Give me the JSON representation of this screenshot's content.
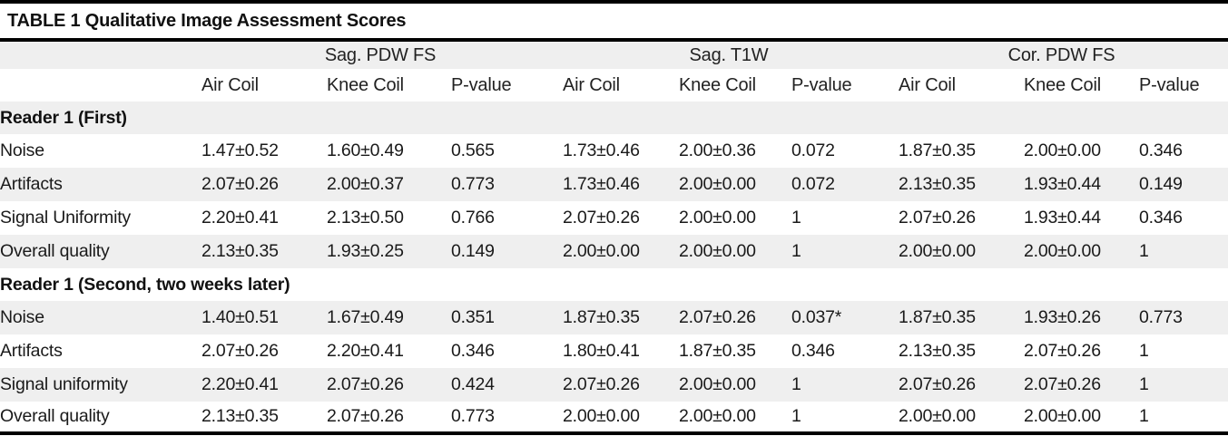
{
  "table": {
    "title": "TABLE 1 Qualitative Image Assessment Scores",
    "column_groups": [
      "Sag. PDW FS",
      "Sag. T1W",
      "Cor. PDW FS"
    ],
    "sub_columns": [
      "Air Coil",
      "Knee Coil",
      "P-value"
    ],
    "sections": [
      {
        "label": "Reader 1 (First)",
        "rows": [
          {
            "label": "Noise",
            "values": [
              "1.47±0.52",
              "1.60±0.49",
              "0.565",
              "1.73±0.46",
              "2.00±0.36",
              "0.072",
              "1.87±0.35",
              "2.00±0.00",
              "0.346"
            ]
          },
          {
            "label": "Artifacts",
            "values": [
              "2.07±0.26",
              "2.00±0.37",
              "0.773",
              "1.73±0.46",
              "2.00±0.00",
              "0.072",
              "2.13±0.35",
              "1.93±0.44",
              "0.149"
            ]
          },
          {
            "label": "Signal Uniformity",
            "values": [
              "2.20±0.41",
              "2.13±0.50",
              "0.766",
              "2.07±0.26",
              "2.00±0.00",
              "1",
              "2.07±0.26",
              "1.93±0.44",
              "0.346"
            ]
          },
          {
            "label": "Overall quality",
            "values": [
              "2.13±0.35",
              "1.93±0.25",
              "0.149",
              "2.00±0.00",
              "2.00±0.00",
              "1",
              "2.00±0.00",
              "2.00±0.00",
              "1"
            ]
          }
        ]
      },
      {
        "label": "Reader 1 (Second, two weeks later)",
        "rows": [
          {
            "label": "Noise",
            "values": [
              "1.40±0.51",
              "1.67±0.49",
              "0.351",
              "1.87±0.35",
              "2.07±0.26",
              "0.037*",
              "1.87±0.35",
              "1.93±0.26",
              "0.773"
            ]
          },
          {
            "label": "Artifacts",
            "values": [
              "2.07±0.26",
              "2.20±0.41",
              "0.346",
              "1.80±0.41",
              "1.87±0.35",
              "0.346",
              "2.13±0.35",
              "2.07±0.26",
              "1"
            ]
          },
          {
            "label": "Signal uniformity",
            "values": [
              "2.20±0.41",
              "2.07±0.26",
              "0.424",
              "2.07±0.26",
              "2.00±0.00",
              "1",
              "2.07±0.26",
              "2.07±0.26",
              "1"
            ]
          },
          {
            "label": "Overall quality",
            "values": [
              "2.13±0.35",
              "2.07±0.26",
              "0.773",
              "2.00±0.00",
              "2.00±0.00",
              "1",
              "2.00±0.00",
              "2.00±0.00",
              "1"
            ]
          }
        ]
      }
    ],
    "colors": {
      "row_alt_background": "#efefef",
      "rule": "#000000",
      "text": "#1a1a1a"
    }
  }
}
